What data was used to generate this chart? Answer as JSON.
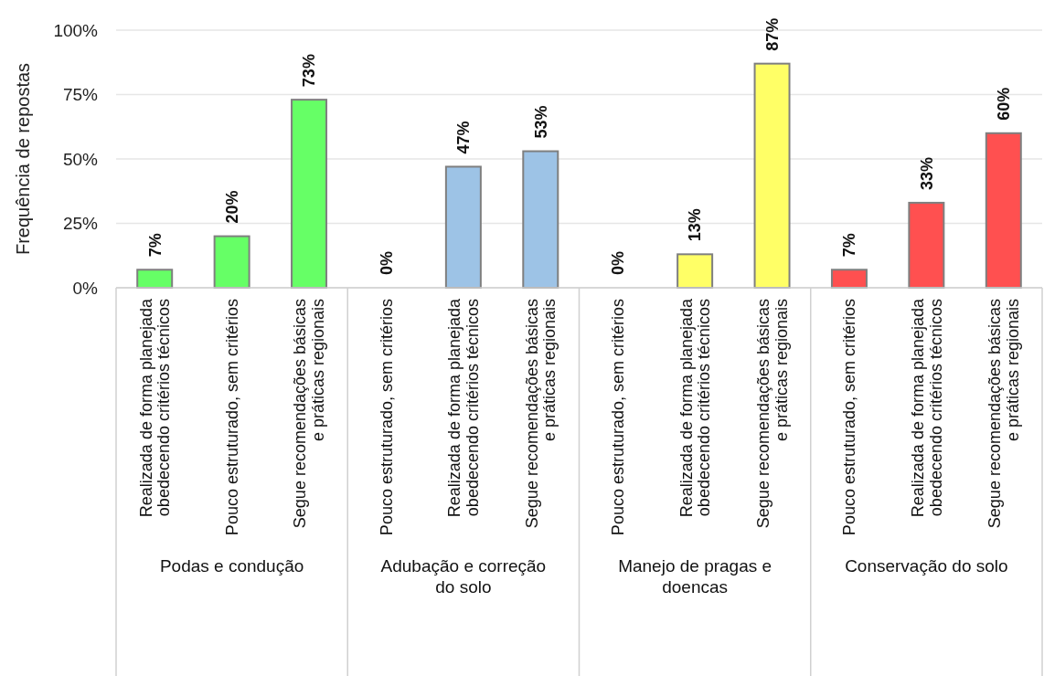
{
  "chart_data": {
    "type": "bar",
    "ylabel": "Frequência de repostas",
    "categories": [
      "Realizada de forma planejada\nobedecendo critérios técnicos",
      "Pouco estruturado, sem critérios",
      "Segue recomendações básicas\ne práticas regionais",
      "Pouco estruturado, sem critérios",
      "Realizada de forma planejada\nobedecendo critérios técnicos",
      "Segue recomendações básicas\ne práticas regionais",
      "Pouco estruturado, sem critérios",
      "Realizada de forma planejada\nobedecendo critérios técnicos",
      "Segue recomendações básicas\ne práticas regionais",
      "Pouco estruturado, sem critérios",
      "Realizada de forma planejada\nobedecendo critérios técnicos",
      "Segue recomendações básicas\ne práticas regionais"
    ],
    "values": [
      7,
      20,
      73,
      0,
      47,
      53,
      0,
      13,
      87,
      7,
      33,
      60
    ],
    "colors": [
      "#66ff66",
      "#66ff66",
      "#66ff66",
      "#9dc3e6",
      "#9dc3e6",
      "#9dc3e6",
      "#ffff66",
      "#ffff66",
      "#ffff66",
      "#ff5050",
      "#ff5050",
      "#ff5050"
    ],
    "value_labels": [
      "7%",
      "20%",
      "73%",
      "0%",
      "47%",
      "53%",
      "0%",
      "13%",
      "87%",
      "7%",
      "33%",
      "60%"
    ],
    "annotations": [
      "Podas e condução",
      "Adubação e correção\ndo solo",
      "Manejo de pragas e\ndoencas",
      "Conservação do solo"
    ],
    "ylim": [
      0,
      100
    ],
    "yticks": [
      {
        "value": 0,
        "label": "0%"
      },
      {
        "value": 25,
        "label": "25%"
      },
      {
        "value": 50,
        "label": "50%"
      },
      {
        "value": 75,
        "label": "75%"
      },
      {
        "value": 100,
        "label": "100%"
      }
    ],
    "grid": "y"
  }
}
